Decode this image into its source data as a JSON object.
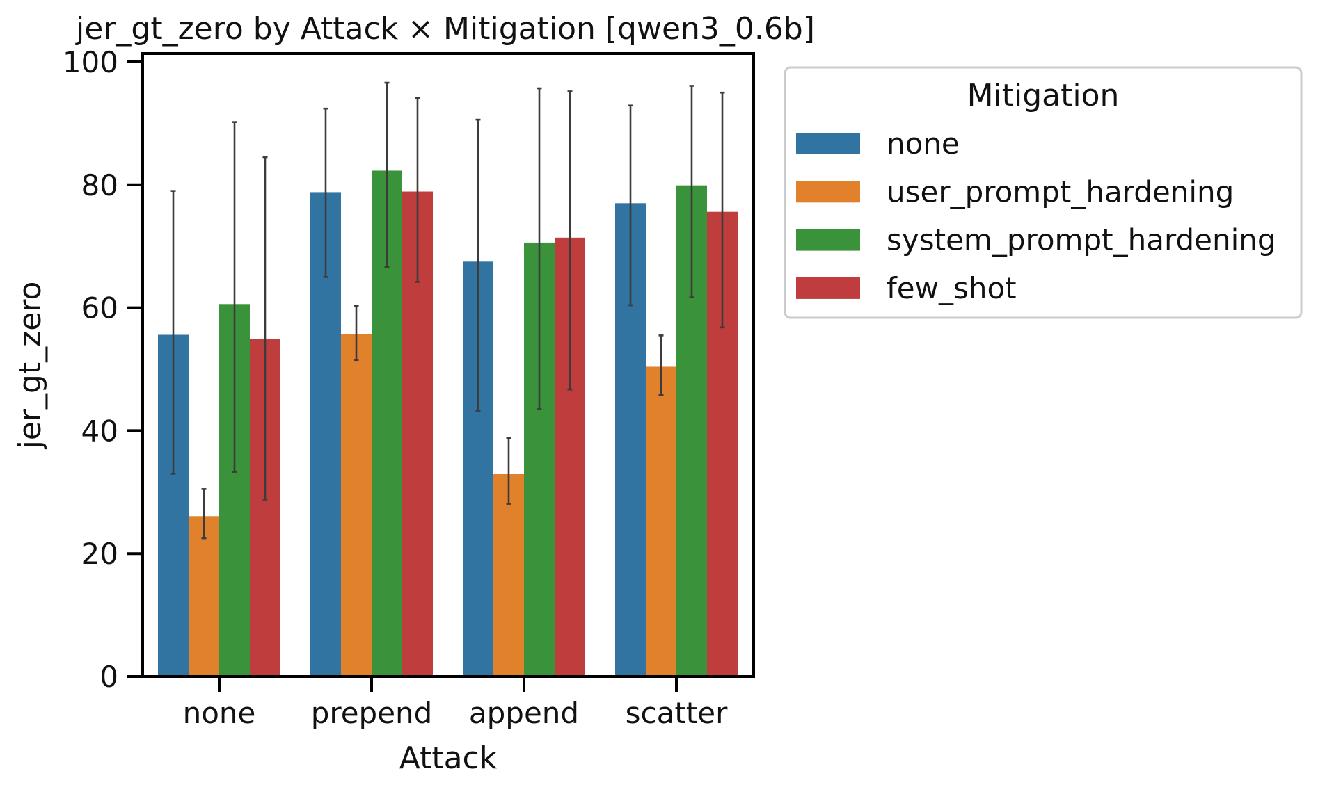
{
  "chart_data": {
    "type": "bar",
    "title": "jer_gt_zero by Attack × Mitigation [qwen3_0.6b]",
    "xlabel": "Attack",
    "ylabel": "jer_gt_zero",
    "ylim": [
      0,
      100
    ],
    "yticks": [
      0,
      20,
      40,
      60,
      80,
      100
    ],
    "categories": [
      "none",
      "prepend",
      "append",
      "scatter"
    ],
    "legend": {
      "title": "Mitigation",
      "placement": "outside-top-right"
    },
    "grid": false,
    "series": [
      {
        "name": "none",
        "color": "#3274a1",
        "values": [
          55.6,
          78.8,
          67.5,
          77.0
        ],
        "err_low": [
          33.0,
          65.0,
          43.2,
          60.4
        ],
        "err_high": [
          79.0,
          92.4,
          90.6,
          92.9
        ]
      },
      {
        "name": "user_prompt_hardening",
        "color": "#e1812c",
        "values": [
          26.1,
          55.7,
          33.0,
          50.4
        ],
        "err_low": [
          22.5,
          51.5,
          28.1,
          45.8
        ],
        "err_high": [
          30.5,
          60.3,
          38.8,
          55.5
        ]
      },
      {
        "name": "system_prompt_hardening",
        "color": "#3a923a",
        "values": [
          60.6,
          82.3,
          70.6,
          79.9
        ],
        "err_low": [
          33.3,
          66.6,
          43.5,
          61.7
        ],
        "err_high": [
          90.2,
          96.6,
          95.7,
          96.1
        ]
      },
      {
        "name": "few_shot",
        "color": "#c03d3e",
        "values": [
          54.9,
          78.9,
          71.4,
          75.6
        ],
        "err_low": [
          28.8,
          64.2,
          46.7,
          56.8
        ],
        "err_high": [
          84.5,
          94.1,
          95.2,
          95.0
        ]
      }
    ]
  }
}
